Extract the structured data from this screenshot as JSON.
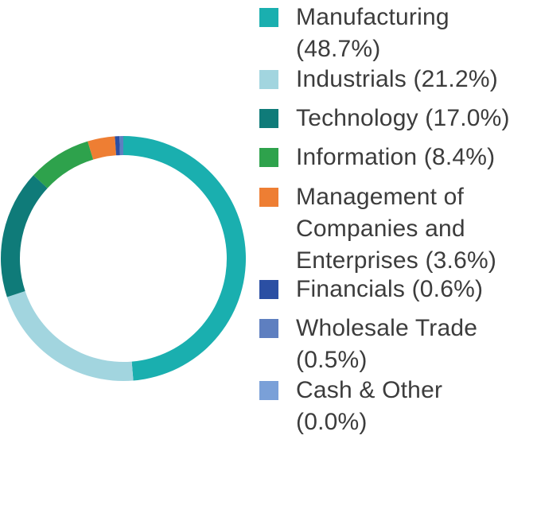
{
  "chart_data": {
    "type": "pie",
    "donut": true,
    "start_angle_deg": 0,
    "direction": "clockwise",
    "legend_position": "right",
    "categories": [
      "Manufacturing",
      "Industrials",
      "Technology",
      "Information",
      "Management of Companies and Enterprises",
      "Financials",
      "Wholesale Trade",
      "Cash & Other"
    ],
    "values": [
      48.7,
      21.2,
      17.0,
      8.4,
      3.6,
      0.6,
      0.5,
      0.0
    ],
    "colors": [
      "#1aafaf",
      "#a2d5df",
      "#0f7b79",
      "#2ea24c",
      "#ee7e33",
      "#2b4fa3",
      "#5e7fc0",
      "#7aa0d8"
    ],
    "legend": [
      {
        "label": "Manufacturing (48.7%)",
        "color": "#1aafaf"
      },
      {
        "label": "Industrials (21.2%)",
        "color": "#a2d5df"
      },
      {
        "label": "Technology (17.0%)",
        "color": "#0f7b79"
      },
      {
        "label": "Information (8.4%)",
        "color": "#2ea24c"
      },
      {
        "label": "Management of Companies and Enterprises (3.6%)",
        "color": "#ee7e33"
      },
      {
        "label": "Financials (0.6%)",
        "color": "#2b4fa3"
      },
      {
        "label": "Wholesale Trade (0.5%)",
        "color": "#5e7fc0"
      },
      {
        "label": "Cash & Other (0.0%)",
        "color": "#7aa0d8"
      }
    ]
  }
}
